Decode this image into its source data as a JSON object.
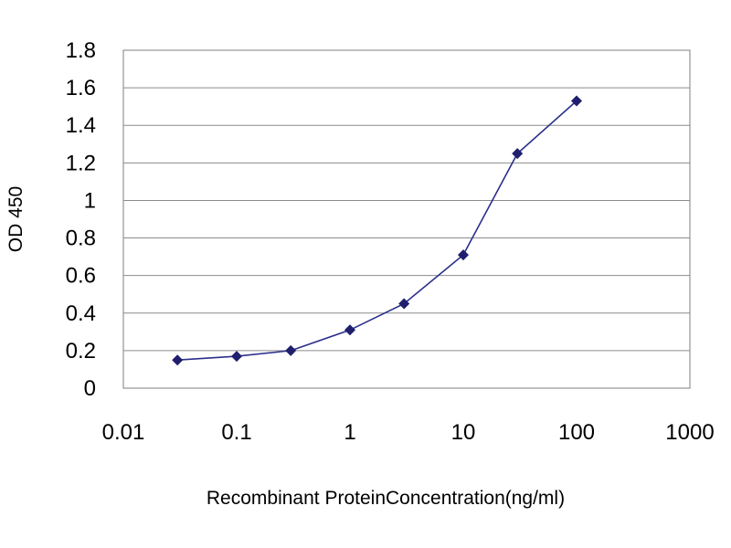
{
  "chart_data": {
    "type": "line",
    "title": "",
    "xlabel": "Recombinant ProteinConcentration(ng/ml)",
    "ylabel": "OD 450",
    "x_scale": "log",
    "xlim": [
      0.01,
      1000
    ],
    "ylim": [
      0,
      1.8
    ],
    "x_ticks": [
      "0.01",
      "0.1",
      "1",
      "10",
      "100",
      "1000"
    ],
    "y_ticks": [
      "0",
      "0.2",
      "0.4",
      "0.6",
      "0.8",
      "1",
      "1.2",
      "1.4",
      "1.6",
      "1.8"
    ],
    "grid": "horizontal",
    "legend": "none",
    "series": [
      {
        "color": "#2b2f8a",
        "x": [
          0.03,
          0.1,
          0.3,
          1,
          3,
          10,
          30,
          100
        ],
        "y": [
          0.15,
          0.17,
          0.2,
          0.31,
          0.45,
          0.71,
          1.25,
          1.53
        ]
      }
    ]
  }
}
